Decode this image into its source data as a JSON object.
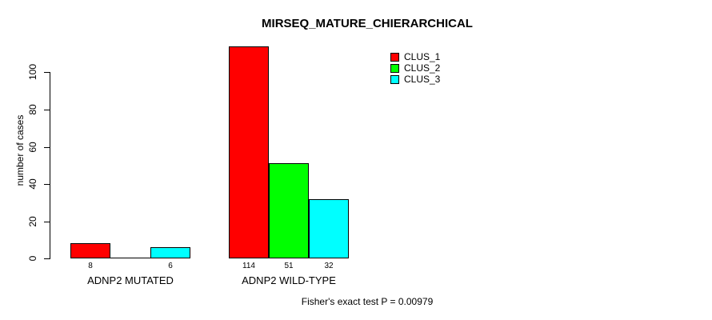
{
  "chart_data": {
    "type": "bar",
    "title": "MIRSEQ_MATURE_CHIERARCHICAL",
    "ylabel": "number of cases",
    "xlabel": "",
    "categories": [
      "ADNP2 MUTATED",
      "ADNP2 WILD-TYPE"
    ],
    "series": [
      {
        "name": "CLUS_1",
        "color": "#ff0000",
        "values": [
          8,
          114
        ]
      },
      {
        "name": "CLUS_2",
        "color": "#00ff00",
        "values": [
          0,
          51
        ]
      },
      {
        "name": "CLUS_3",
        "color": "#00ffff",
        "values": [
          6,
          32
        ]
      }
    ],
    "bar_value_labels": [
      [
        "8",
        "",
        "6"
      ],
      [
        "114",
        "51",
        "32"
      ]
    ],
    "yticks": [
      0,
      20,
      40,
      60,
      80,
      100
    ],
    "ylim": [
      0,
      116
    ],
    "grid": false,
    "legend_position": "top-right",
    "bar_border_color": "#000000",
    "axis_color": "#000000",
    "footnote": "Fisher's exact test P = 0.00979"
  }
}
